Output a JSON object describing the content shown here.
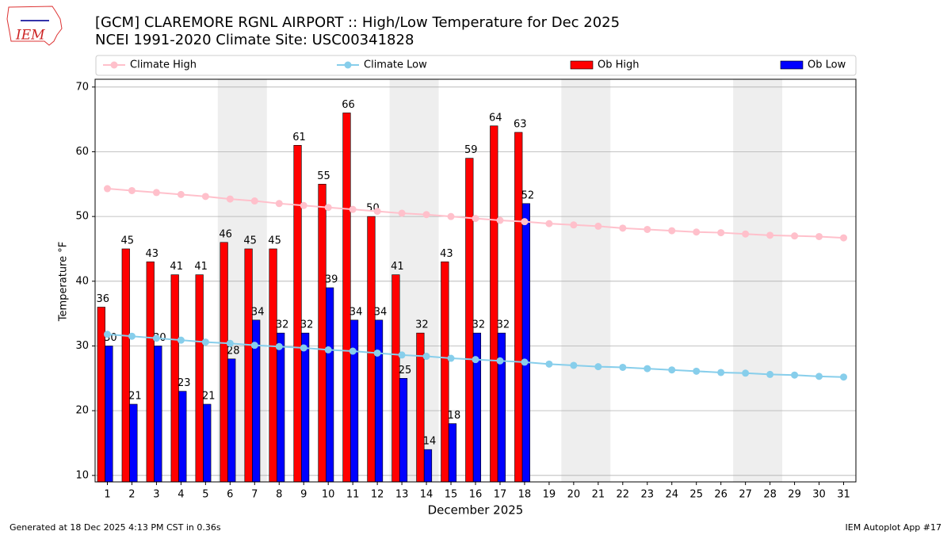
{
  "logo_text": "IEM",
  "chart_data": {
    "type": "bar",
    "title": "[GCM] CLAREMORE RGNL AIRPORT :: High/Low Temperature for Dec 2025",
    "subtitle": "NCEI 1991-2020 Climate Site: USC00341828",
    "x_label": "December 2025",
    "y_label": "Temperature °F",
    "x": [
      1,
      2,
      3,
      4,
      5,
      6,
      7,
      8,
      9,
      10,
      11,
      12,
      13,
      14,
      15,
      16,
      17,
      18,
      19,
      20,
      21,
      22,
      23,
      24,
      25,
      26,
      27,
      28,
      29,
      30,
      31
    ],
    "xlim": [
      0.5,
      31.5
    ],
    "xticks": [
      1,
      2,
      3,
      4,
      5,
      6,
      7,
      8,
      9,
      10,
      11,
      12,
      13,
      14,
      15,
      16,
      17,
      18,
      19,
      20,
      21,
      22,
      23,
      24,
      25,
      26,
      27,
      28,
      29,
      30,
      31
    ],
    "ylim": [
      9,
      71.2
    ],
    "yticks": [
      10,
      20,
      30,
      40,
      50,
      60,
      70
    ],
    "grid": true,
    "shaded_spans": [
      [
        5.5,
        7.5
      ],
      [
        12.5,
        14.5
      ],
      [
        19.5,
        21.5
      ],
      [
        26.5,
        28.5
      ]
    ],
    "shade_color": "#eeeeee",
    "series": [
      {
        "name": "Climate High",
        "type": "line",
        "color": "#ffc0cb",
        "values": [
          54.3,
          54.0,
          53.7,
          53.4,
          53.1,
          52.7,
          52.4,
          52.0,
          51.7,
          51.4,
          51.1,
          50.8,
          50.5,
          50.3,
          50.0,
          49.7,
          49.4,
          49.2,
          48.9,
          48.7,
          48.5,
          48.2,
          48.0,
          47.8,
          47.6,
          47.5,
          47.3,
          47.1,
          47.0,
          46.9,
          46.7
        ]
      },
      {
        "name": "Climate Low",
        "type": "line",
        "color": "#87ceeb",
        "values": [
          31.8,
          31.5,
          31.2,
          30.9,
          30.6,
          30.4,
          30.1,
          29.9,
          29.7,
          29.4,
          29.2,
          28.9,
          28.6,
          28.4,
          28.1,
          27.9,
          27.7,
          27.5,
          27.2,
          27.0,
          26.8,
          26.7,
          26.5,
          26.3,
          26.1,
          25.9,
          25.8,
          25.6,
          25.5,
          25.3,
          25.2
        ]
      },
      {
        "name": "Ob High",
        "type": "bar",
        "color": "#ff0000",
        "values": [
          36,
          45,
          43,
          41,
          41,
          46,
          45,
          45,
          61,
          55,
          66,
          50,
          41,
          32,
          43,
          59,
          64,
          63,
          null,
          null,
          null,
          null,
          null,
          null,
          null,
          null,
          null,
          null,
          null,
          null,
          null
        ]
      },
      {
        "name": "Ob Low",
        "type": "bar",
        "color": "#0000ff",
        "values": [
          30,
          21,
          30,
          23,
          21,
          28,
          34,
          32,
          32,
          39,
          34,
          34,
          25,
          14,
          18,
          32,
          32,
          52,
          null,
          null,
          null,
          null,
          null,
          null,
          null,
          null,
          null,
          null,
          null,
          null,
          null
        ]
      }
    ],
    "footer_left": "Generated at 18 Dec 2025 4:13 PM CST in 0.36s",
    "footer_right": "IEM Autoplot App #17"
  }
}
